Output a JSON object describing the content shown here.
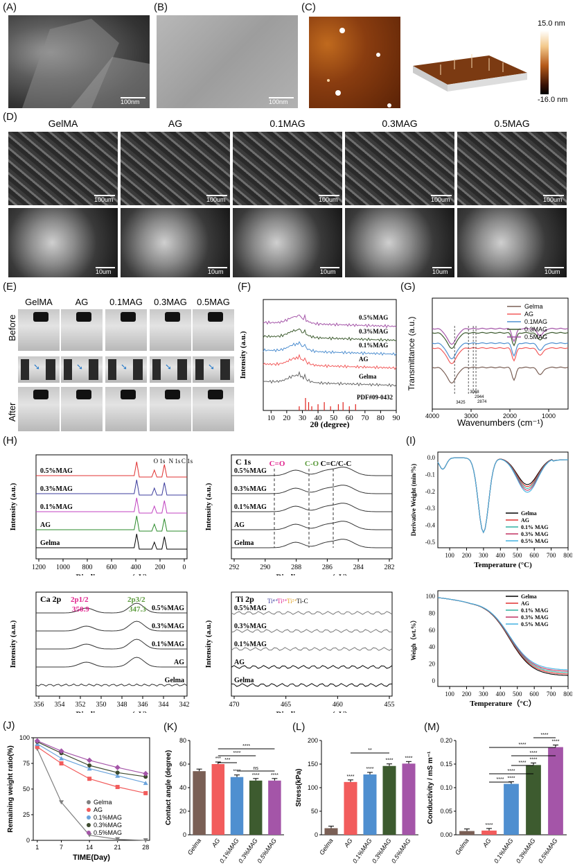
{
  "panels": {
    "A": "(A)",
    "B": "(B)",
    "C": "(C)",
    "D": "(D)",
    "E": "(E)",
    "F": "(F)",
    "G": "(G)",
    "H": "(H)",
    "I": "(I)",
    "J": "(J)",
    "K": "(K)",
    "L": "(L)",
    "M": "(M)"
  },
  "images_top": {
    "scale_a": "100nm",
    "scale_b": "100nm",
    "afm_max": "15.0 nm",
    "afm_min": "-16.0 nm"
  },
  "sem_groups": [
    "GelMA",
    "AG",
    "0.1MAG",
    "0.3MAG",
    "0.5MAG"
  ],
  "sem_scales_top": [
    "100um",
    "100um",
    "100um",
    "100um",
    "100um"
  ],
  "sem_scales_bottom": [
    "10um",
    "10um",
    "10um",
    "10um",
    "10um"
  ],
  "vials": {
    "groups": [
      "GelMA",
      "AG",
      "0.1MAG",
      "0.3MAG",
      "0.5MAG"
    ],
    "before": "Before",
    "after": "After"
  },
  "xrd": {
    "ylabel": "Intensity (a.u.)",
    "xlabel": "2θ (degree)",
    "series": [
      "0.5%MAG",
      "0.3%MAG",
      "0.1%MAG",
      "AG",
      "Gelma"
    ],
    "ref": "PDF#09-0432",
    "xticks": [
      "10",
      "20",
      "30",
      "40",
      "50",
      "60",
      "70",
      "80",
      "90"
    ]
  },
  "ftir": {
    "ylabel": "Transmittance (a.u.)",
    "xlabel": "Wavenumbers (cm⁻¹)",
    "legend": [
      "Gelma",
      "AG",
      "0.1MAG",
      "0.3MAG",
      "0.5MAG"
    ],
    "xticks": [
      "4000",
      "3000",
      "2000",
      "1000"
    ],
    "peaks": [
      "3425",
      "3068",
      "2944",
      "2874"
    ]
  },
  "xps_survey": {
    "ylabel": "Intensity (a.u.)",
    "xlabel": "Binding energy (eV)",
    "series": [
      "0.5%MAG",
      "0.3%MAG",
      "0.1%MAG",
      "AG",
      "Gelma"
    ],
    "peaks": [
      "O 1s",
      "N 1s",
      "C 1s"
    ],
    "xticks": [
      "1200",
      "1000",
      "800",
      "600",
      "400",
      "200",
      "0"
    ]
  },
  "xps_c1s": {
    "title": "C 1s",
    "ylabel": "Intensity (a.u.)",
    "xlabel": "Binding energy (eV)",
    "series": [
      "0.5%MAG",
      "0.3%MAG",
      "0.1%MAG",
      "AG",
      "Gelma"
    ],
    "peaks": [
      "C=O",
      "C-O",
      "C=C/C-C"
    ],
    "xticks": [
      "292",
      "290",
      "288",
      "286",
      "284",
      "282"
    ]
  },
  "xps_ca2p": {
    "title": "Ca 2p",
    "ylabel": "Intensity (a.u.)",
    "xlabel": "Binding energy (eV)",
    "series": [
      "0.5%MAG",
      "0.3%MAG",
      "0.1%MAG",
      "AG",
      "Gelma"
    ],
    "p12": "2p1/2",
    "p32": "2p3/2",
    "v12": "350.9",
    "v32": "347.3",
    "xticks": [
      "356",
      "354",
      "352",
      "350",
      "348",
      "346",
      "344",
      "342"
    ]
  },
  "xps_ti2p": {
    "title": "Ti 2p",
    "ylabel": "Intensity (a.u.)",
    "xlabel": "Binding energy (eV)",
    "series": [
      "0.5%MAG",
      "0.3%MAG",
      "0.1%MAG",
      "AG",
      "Gelma"
    ],
    "xticks": [
      "470",
      "465",
      "460",
      "455"
    ],
    "species": [
      "Ti⁴⁺",
      "Ti³⁺",
      "Ti²⁺",
      "Ti-C"
    ]
  },
  "dtg": {
    "ylabel": "Derivative Weight (min/%)",
    "xlabel": "Temperature (°C)",
    "legend": [
      "Gelma",
      "AG",
      "0.1% MAG",
      "0.3% MAG",
      "0.5% MAG"
    ],
    "xticks": [
      "100",
      "200",
      "300",
      "400",
      "500",
      "600",
      "700",
      "800"
    ],
    "yticks": [
      "0.0",
      "-0.1",
      "-0.2",
      "-0.3",
      "-0.4",
      "-0.5"
    ]
  },
  "tga": {
    "ylabel": "Weigh（wt.%）",
    "xlabel": "Temperature（°C）",
    "legend": [
      "Gelma",
      "AG",
      "0.1% MAG",
      "0.3% MAG",
      "0.5% MAG"
    ],
    "xticks": [
      "100",
      "200",
      "300",
      "400",
      "500",
      "600",
      "700",
      "800"
    ],
    "yticks": [
      "100",
      "80",
      "60",
      "40",
      "20",
      "0"
    ]
  },
  "colors": {
    "gelma": "#7a5f55",
    "ag": "#f25c5c",
    "mag01": "#4f8fd0",
    "mag03": "#3d5b2f",
    "mag05": "#a455a8"
  },
  "chart_data": [
    {
      "type": "line",
      "title": "",
      "xlabel": "TIME(Day)",
      "ylabel": "Remaining weight ratio(%)",
      "x": [
        1,
        7,
        14,
        21,
        28
      ],
      "ylim": [
        0,
        100
      ],
      "yticks": [
        "0",
        "25",
        "50",
        "75",
        "100"
      ],
      "series": [
        {
          "name": "Gelma",
          "values": [
            89,
            37,
            5,
            1,
            0
          ]
        },
        {
          "name": "AG",
          "values": [
            91,
            75,
            60,
            52,
            46
          ]
        },
        {
          "name": "0.1%MAG",
          "values": [
            94,
            80,
            70,
            63,
            56
          ]
        },
        {
          "name": "0.3%MAG",
          "values": [
            96,
            85,
            73,
            66,
            62
          ]
        },
        {
          "name": "0.5%MAG",
          "values": [
            97,
            87,
            78,
            71,
            65
          ]
        }
      ]
    },
    {
      "type": "bar",
      "title": "",
      "xlabel": "",
      "ylabel": "Contact angle (degree)",
      "categories": [
        "Gelma",
        "AG",
        "0.1%MAG",
        "0.3%MAG",
        "0.5%MAG"
      ],
      "values": [
        54,
        60,
        49,
        46,
        46
      ],
      "ylim": [
        0,
        80
      ],
      "yticks": [
        "0",
        "20",
        "40",
        "60",
        "80"
      ],
      "stars": [
        "",
        "***",
        "****",
        "****",
        "****"
      ],
      "sig": [
        "***",
        "****",
        "****",
        "ns"
      ]
    },
    {
      "type": "bar",
      "title": "",
      "xlabel": "",
      "ylabel": "Stress(kPa)",
      "categories": [
        "Gelma",
        "AG",
        "0.1%MAG",
        "0.3%MAG",
        "0.5%MAG"
      ],
      "values": [
        14,
        112,
        128,
        146,
        151
      ],
      "ylim": [
        0,
        200
      ],
      "yticks": [
        "0",
        "50",
        "100",
        "150",
        "200"
      ],
      "stars": [
        "",
        "****",
        "****",
        "****",
        "****"
      ],
      "sig": [
        "**"
      ]
    },
    {
      "type": "bar",
      "title": "",
      "xlabel": "",
      "ylabel": "Conductivity / mS m⁻¹",
      "categories": [
        "Gelma",
        "AG",
        "0.1%MAG",
        "0.3%MAG",
        "0.5%MAG"
      ],
      "values": [
        0.008,
        0.009,
        0.108,
        0.148,
        0.186
      ],
      "ylim": [
        0,
        0.2
      ],
      "yticks": [
        "0.00",
        "0.05",
        "0.10",
        "0.15",
        "0.20"
      ],
      "stars": [
        "",
        "****",
        "****",
        "****",
        "****"
      ],
      "sig": [
        "****",
        "****",
        "****",
        "****",
        "****",
        "****"
      ]
    }
  ]
}
